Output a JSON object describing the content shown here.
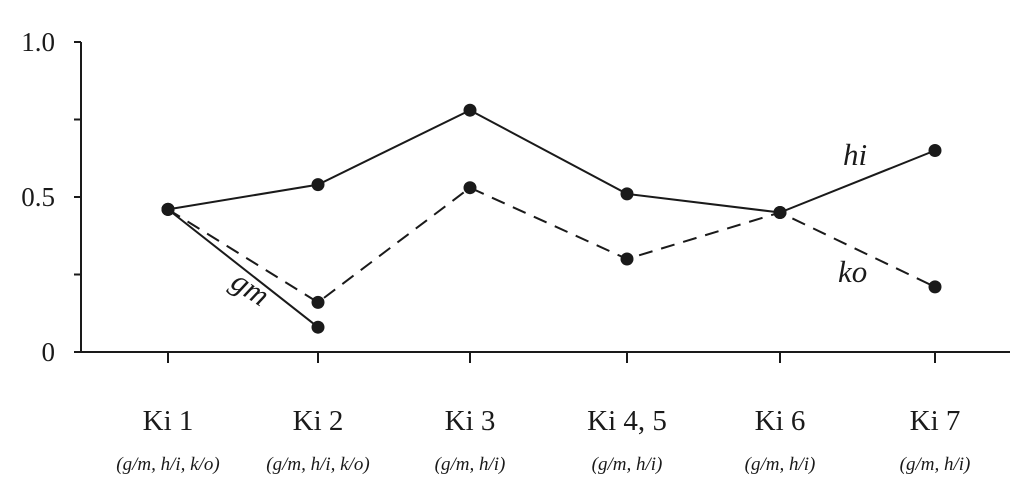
{
  "chart_data": {
    "type": "line",
    "title": "",
    "xlabel": "",
    "ylabel": "",
    "ylim": [
      0,
      1.0
    ],
    "yticks": [
      {
        "value": 0,
        "label": "0"
      },
      {
        "value": 0.25,
        "label": ""
      },
      {
        "value": 0.5,
        "label": "0.5"
      },
      {
        "value": 0.75,
        "label": ""
      },
      {
        "value": 1.0,
        "label": "1.0"
      }
    ],
    "categories": [
      "Ki 1",
      "Ki 2",
      "Ki 3",
      "Ki 4, 5",
      "Ki 6",
      "Ki 7"
    ],
    "category_subs": [
      "(g/m, h/i, k/o)",
      "(g/m, h/i, k/o)",
      "(g/m, h/i)",
      "(g/m, h/i)",
      "(g/m, h/i)",
      "(g/m, h/i)"
    ],
    "grid": false,
    "series": [
      {
        "name": "hi",
        "style": "solid",
        "values": [
          0.46,
          0.54,
          0.78,
          0.51,
          0.45,
          0.65
        ]
      },
      {
        "name": "ko",
        "style": "dashed",
        "values": [
          0.46,
          0.16,
          0.53,
          0.3,
          0.45,
          0.21
        ]
      },
      {
        "name": "gm",
        "style": "solid",
        "values": [
          0.46,
          0.08,
          null,
          null,
          null,
          null
        ]
      }
    ],
    "colors": {
      "line": "#1a1a1a",
      "background": "#ffffff"
    }
  }
}
